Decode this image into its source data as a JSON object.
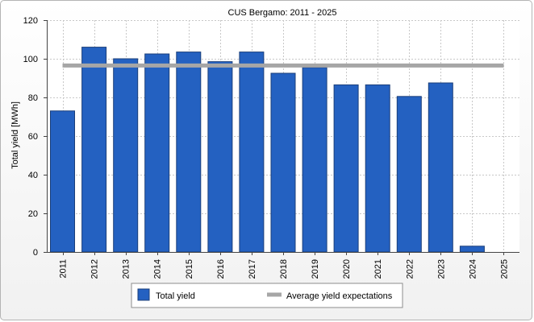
{
  "chart_data": {
    "type": "bar",
    "title": "CUS Bergamo: 2011 - 2025",
    "ylabel": "Total yield [MWh]",
    "xlabel": "",
    "ylim": [
      0,
      120
    ],
    "yticks": [
      0,
      20,
      40,
      60,
      80,
      100,
      120
    ],
    "grid": true,
    "legend_position": "bottom",
    "categories": [
      "2011",
      "2012",
      "2013",
      "2014",
      "2015",
      "2016",
      "2017",
      "2018",
      "2019",
      "2020",
      "2021",
      "2022",
      "2023",
      "2024",
      "2025"
    ],
    "series": [
      {
        "name": "Total yield",
        "type": "bar",
        "color": "#2461c1",
        "values": [
          73,
          106,
          100,
          102.5,
          103.5,
          98.5,
          103.5,
          92.5,
          95.5,
          86.5,
          86.5,
          80.5,
          87.5,
          3,
          null
        ]
      },
      {
        "name": "Average yield expectations",
        "type": "line",
        "color": "#a6a6a6",
        "values": [
          96.5,
          96.5,
          96.5,
          96.5,
          96.5,
          96.5,
          96.5,
          96.5,
          96.5,
          96.5,
          96.5,
          96.5,
          96.5,
          96.5,
          96.5
        ]
      }
    ]
  }
}
